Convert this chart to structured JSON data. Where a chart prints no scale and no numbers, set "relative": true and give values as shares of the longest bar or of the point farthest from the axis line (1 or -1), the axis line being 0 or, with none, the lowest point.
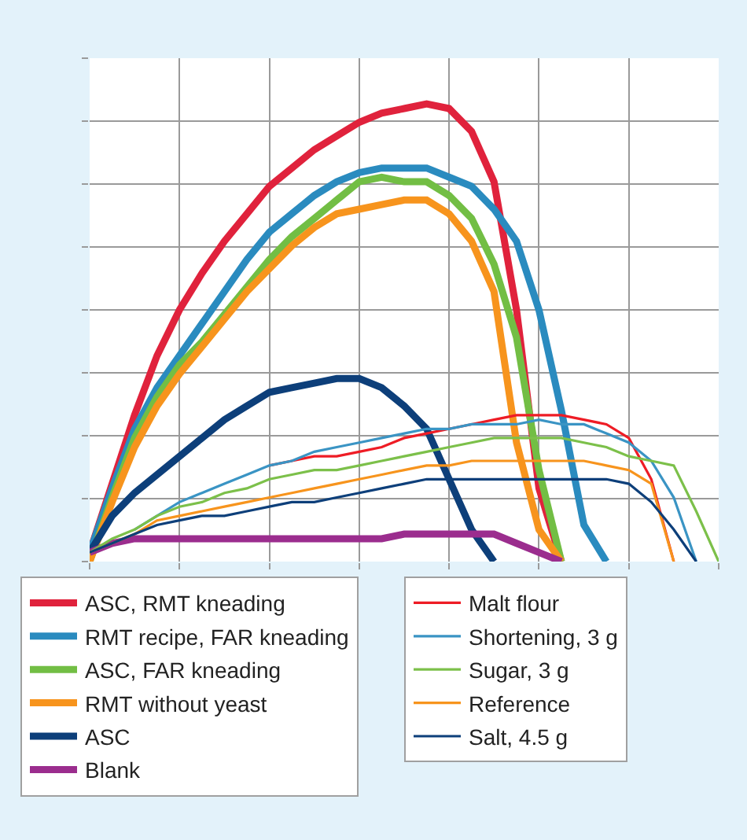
{
  "chart_data": {
    "type": "line",
    "relative": true,
    "grid": true,
    "legend": "bottom",
    "tick_labels": false,
    "marker": "none",
    "line_style": "solid",
    "categories": [
      null,
      null,
      null,
      null,
      null,
      null,
      null,
      null,
      null,
      null,
      null,
      null,
      null,
      null,
      null,
      null,
      null,
      null,
      null,
      null,
      null,
      null,
      null,
      null,
      null,
      null,
      null,
      null,
      null
    ],
    "series": [
      {
        "name": "ASC, RMT kneading",
        "color": "#e0223c",
        "values": [
          0.02,
          0.17,
          0.32,
          0.45,
          0.55,
          0.63,
          0.7,
          0.76,
          0.82,
          0.86,
          0.9,
          0.93,
          0.96,
          0.98,
          0.99,
          1.0,
          0.99,
          0.94,
          0.83,
          0.55,
          0.16,
          0,
          null,
          null,
          null,
          null,
          null,
          null,
          null
        ]
      },
      {
        "name": "RMT recipe, FAR kneading",
        "color": "#2a8bbf",
        "values": [
          0.02,
          0.16,
          0.29,
          0.38,
          0.45,
          0.52,
          0.59,
          0.66,
          0.72,
          0.76,
          0.8,
          0.83,
          0.85,
          0.86,
          0.86,
          0.86,
          0.84,
          0.82,
          0.77,
          0.7,
          0.55,
          0.33,
          0.08,
          0,
          null,
          null,
          null,
          null,
          null
        ]
      },
      {
        "name": "ASC, FAR kneading",
        "color": "#72be44",
        "values": [
          0,
          0.14,
          0.27,
          0.36,
          0.43,
          0.48,
          0.54,
          0.6,
          0.66,
          0.71,
          0.75,
          0.79,
          0.83,
          0.84,
          0.83,
          0.83,
          0.8,
          0.75,
          0.65,
          0.49,
          0.2,
          0,
          null,
          null,
          null,
          null,
          null,
          null,
          null
        ]
      },
      {
        "name": "RMT without yeast",
        "color": "#f7941d",
        "values": [
          0,
          0.13,
          0.25,
          0.34,
          0.41,
          0.47,
          0.53,
          0.59,
          0.64,
          0.69,
          0.73,
          0.76,
          0.77,
          0.78,
          0.79,
          0.79,
          0.76,
          0.7,
          0.59,
          0.26,
          0.07,
          0,
          null,
          null,
          null,
          null,
          null,
          null,
          null
        ]
      },
      {
        "name": "ASC",
        "color": "#0d3f7a",
        "values": [
          0.02,
          0.1,
          0.15,
          0.19,
          0.23,
          0.27,
          0.31,
          0.34,
          0.37,
          0.38,
          0.39,
          0.4,
          0.4,
          0.38,
          0.34,
          0.29,
          0.18,
          0.07,
          0,
          null,
          null,
          null,
          null,
          null,
          null,
          null,
          null,
          null,
          null
        ]
      },
      {
        "name": "Blank",
        "color": "#9b2d8e",
        "values": [
          0.02,
          0.04,
          0.05,
          0.05,
          0.05,
          0.05,
          0.05,
          0.05,
          0.05,
          0.05,
          0.05,
          0.05,
          0.05,
          0.05,
          0.06,
          0.06,
          0.06,
          0.06,
          0.06,
          0.04,
          0.02,
          0,
          null,
          null,
          null,
          null,
          null,
          null,
          null
        ]
      },
      {
        "name": "Malt flour",
        "color": "#ee1c25",
        "values": [
          null,
          null,
          null,
          null,
          null,
          null,
          null,
          null,
          0.21,
          0.22,
          0.23,
          0.23,
          0.24,
          0.25,
          0.27,
          0.28,
          0.29,
          0.3,
          0.31,
          0.32,
          0.32,
          0.32,
          0.31,
          0.3,
          0.27,
          0.18,
          0,
          null,
          null
        ]
      },
      {
        "name": "Shortening, 3 g",
        "color": "#3a94c4",
        "values": [
          null,
          null,
          0.07,
          0.1,
          0.13,
          0.15,
          0.17,
          0.19,
          0.21,
          0.22,
          0.24,
          0.25,
          0.26,
          0.27,
          0.28,
          0.29,
          0.29,
          0.3,
          0.3,
          0.3,
          0.31,
          0.3,
          0.3,
          0.28,
          0.26,
          0.22,
          0.14,
          0,
          null
        ]
      },
      {
        "name": "Sugar, 3 g",
        "color": "#7cc04a",
        "values": [
          0.02,
          0.05,
          0.07,
          0.1,
          0.12,
          0.13,
          0.15,
          0.16,
          0.18,
          0.19,
          0.2,
          0.2,
          0.21,
          0.22,
          0.23,
          0.24,
          0.25,
          0.26,
          0.27,
          0.27,
          0.27,
          0.27,
          0.26,
          0.25,
          0.23,
          0.22,
          0.21,
          0.11,
          0
        ]
      },
      {
        "name": "Reference",
        "color": "#f7941d",
        "values": [
          0.02,
          0.04,
          0.06,
          0.09,
          0.1,
          0.11,
          0.12,
          0.13,
          0.14,
          0.15,
          0.16,
          0.17,
          0.18,
          0.19,
          0.2,
          0.21,
          0.21,
          0.22,
          0.22,
          0.22,
          0.22,
          0.22,
          0.22,
          0.21,
          0.2,
          0.17,
          0,
          null,
          null
        ]
      },
      {
        "name": "Salt, 4.5 g",
        "color": "#0d3f7a",
        "values": [
          0.02,
          0.04,
          0.06,
          0.08,
          0.09,
          0.1,
          0.1,
          0.11,
          0.12,
          0.13,
          0.13,
          0.14,
          0.15,
          0.16,
          0.17,
          0.18,
          0.18,
          0.18,
          0.18,
          0.18,
          0.18,
          0.18,
          0.18,
          0.18,
          0.17,
          0.13,
          0.07,
          0,
          null
        ]
      }
    ]
  }
}
